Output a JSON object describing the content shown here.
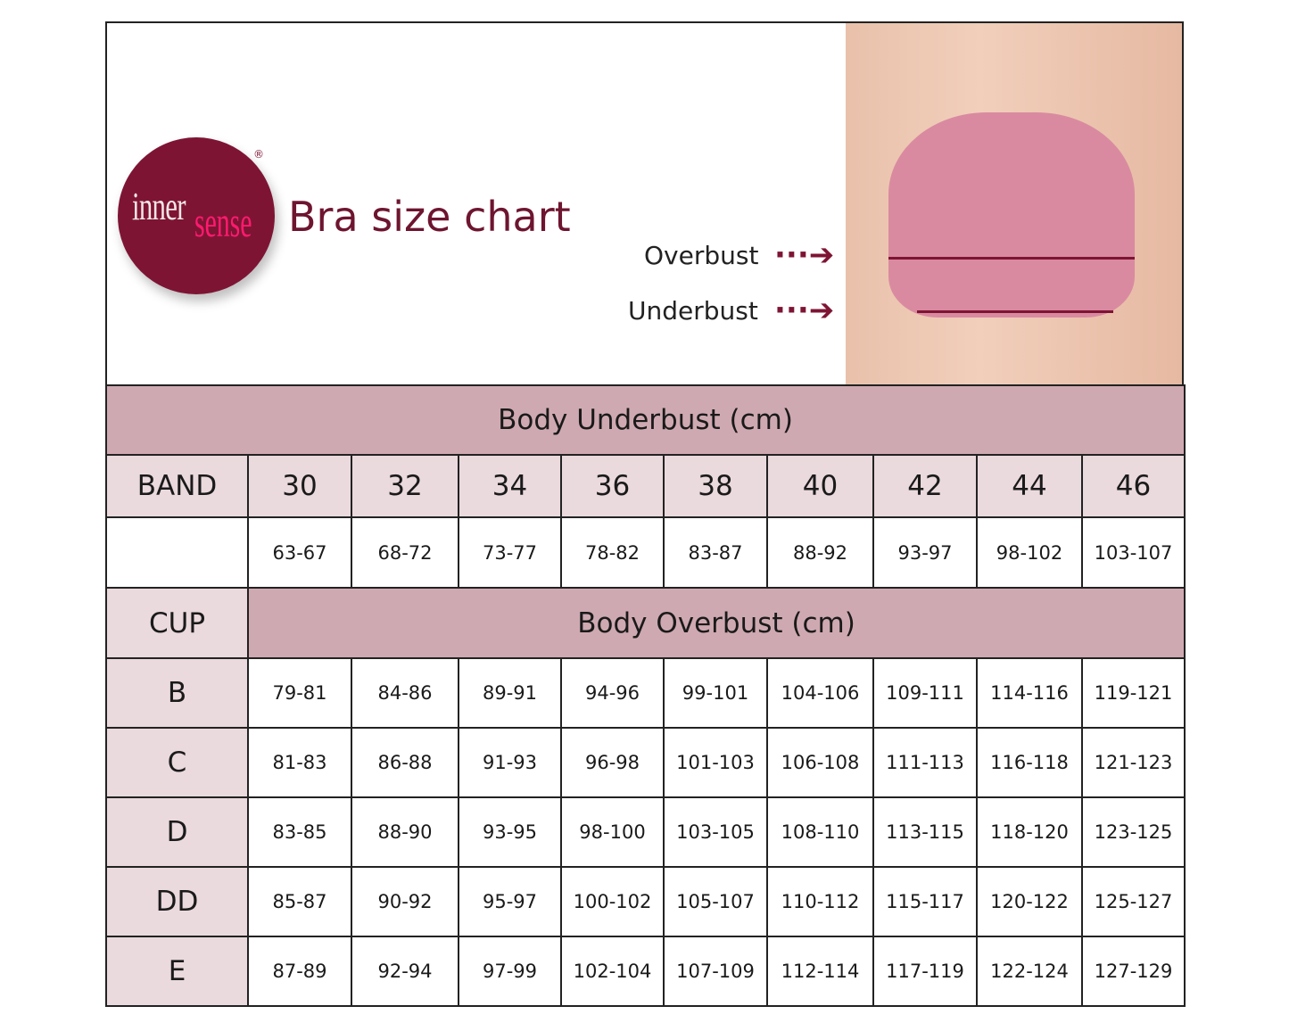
{
  "brand": {
    "logo_text_1": "inner",
    "logo_text_2": "sense",
    "registered": "®"
  },
  "title": "Bra size chart",
  "labels": {
    "overbust": "Overbust",
    "underbust": "Underbust"
  },
  "colors": {
    "header": "#cfa9b1",
    "label_cell": "#ead9dd",
    "brand": "#7e1434",
    "brand_pink": "#ff1a6e"
  },
  "table": {
    "underbust_header": "Body Underbust (cm)",
    "band_label": "BAND",
    "bands": [
      "30",
      "32",
      "34",
      "36",
      "38",
      "40",
      "42",
      "44",
      "46"
    ],
    "underbust_ranges": [
      "63-67",
      "68-72",
      "73-77",
      "78-82",
      "83-87",
      "88-92",
      "93-97",
      "98-102",
      "103-107"
    ],
    "cup_label": "CUP",
    "overbust_header": "Body Overbust (cm)",
    "cups": [
      {
        "cup": "B",
        "values": [
          "79-81",
          "84-86",
          "89-91",
          "94-96",
          "99-101",
          "104-106",
          "109-111",
          "114-116",
          "119-121"
        ]
      },
      {
        "cup": "C",
        "values": [
          "81-83",
          "86-88",
          "91-93",
          "96-98",
          "101-103",
          "106-108",
          "111-113",
          "116-118",
          "121-123"
        ]
      },
      {
        "cup": "D",
        "values": [
          "83-85",
          "88-90",
          "93-95",
          "98-100",
          "103-105",
          "108-110",
          "113-115",
          "118-120",
          "123-125"
        ]
      },
      {
        "cup": "DD",
        "values": [
          "85-87",
          "90-92",
          "95-97",
          "100-102",
          "105-107",
          "110-112",
          "115-117",
          "120-122",
          "125-127"
        ]
      },
      {
        "cup": "E",
        "values": [
          "87-89",
          "92-94",
          "97-99",
          "102-104",
          "107-109",
          "112-114",
          "117-119",
          "122-124",
          "127-129"
        ]
      }
    ]
  }
}
